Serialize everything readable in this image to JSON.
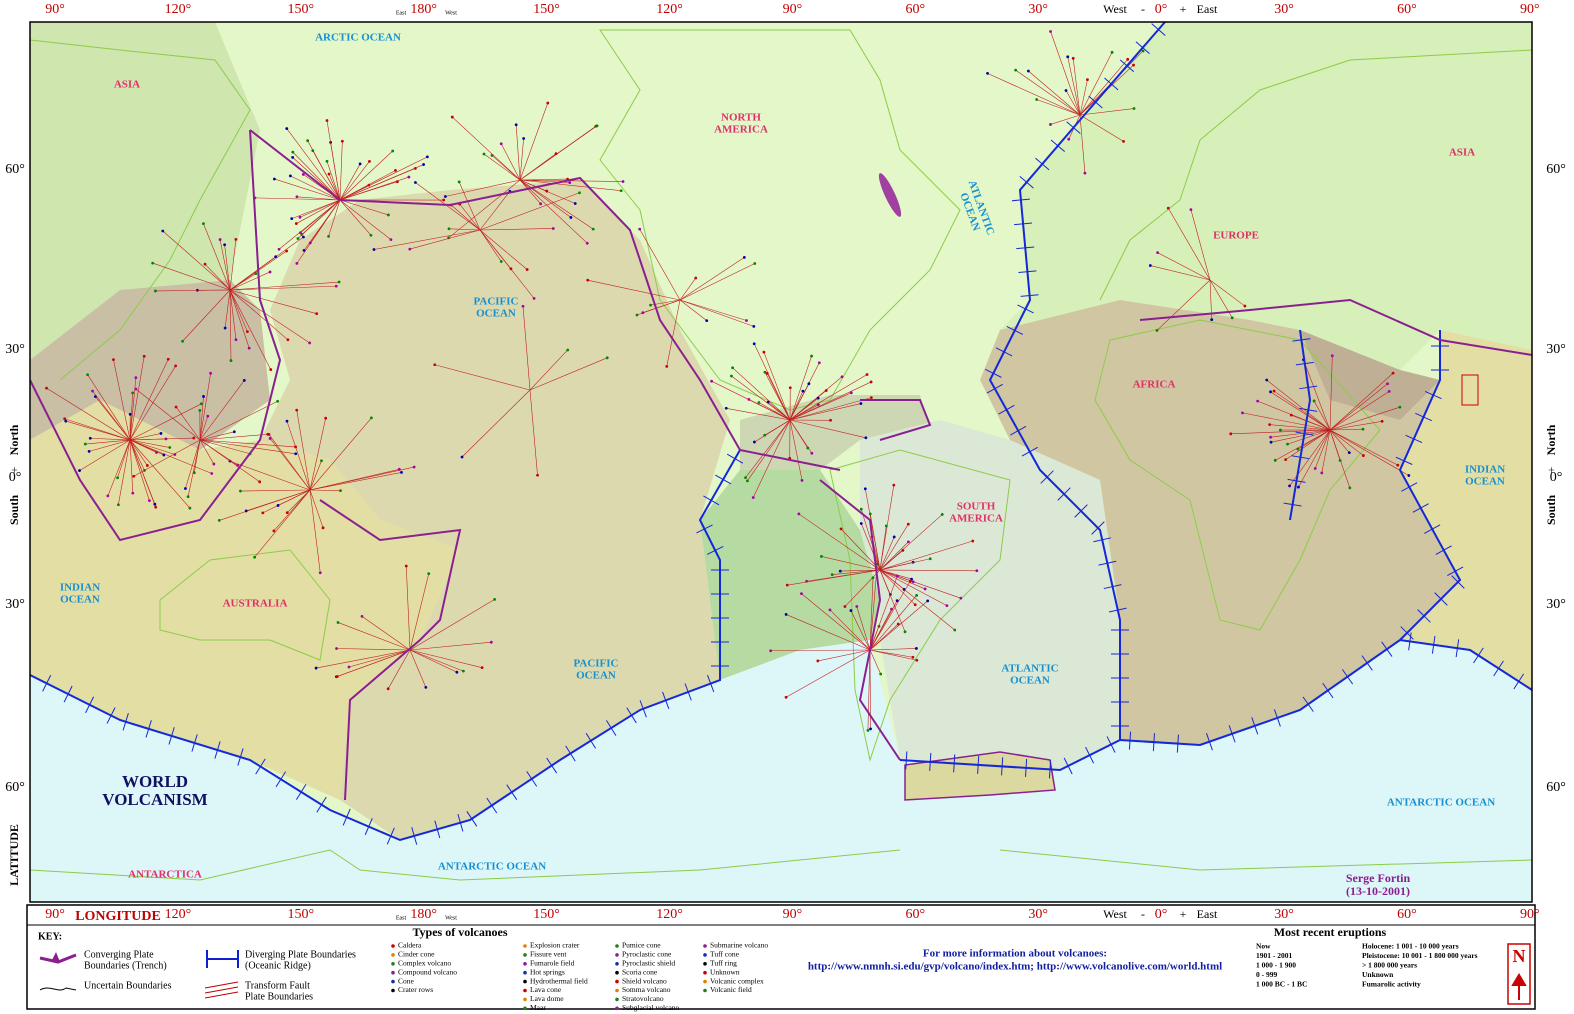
{
  "map": {
    "title_lines": [
      "WORLD",
      "VOLCANISM"
    ],
    "longitude_labels_top": [
      "90°",
      "120°",
      "150°",
      "180°",
      "150°",
      "120°",
      "90°",
      "60°",
      "30°",
      "0°",
      "30°",
      "60°",
      "90°"
    ],
    "longitude_labels_bottom": [
      "90°",
      "120°",
      "150°",
      "180°",
      "150°",
      "120°",
      "90°",
      "60°",
      "30°",
      "0°",
      "30°",
      "60°",
      "90°"
    ],
    "latitude_labels_left": [
      "60°",
      "30°",
      "0°",
      "30°",
      "60°"
    ],
    "latitude_labels_right": [
      "60°",
      "30°",
      "0°",
      "30°",
      "60°"
    ],
    "hemisphere": {
      "west": "West",
      "minus": "-",
      "plus": "+",
      "east": "East"
    },
    "date_line": {
      "east": "East",
      "west": "West"
    },
    "axis": {
      "south": "South",
      "north": "North",
      "latitude": "LATITUDE",
      "longitude": "LONGITUDE"
    },
    "regions": [
      {
        "lines": [
          "ARCTIC OCEAN"
        ],
        "kind": "ocean"
      },
      {
        "lines": [
          "ASIA"
        ],
        "kind": "land"
      },
      {
        "lines": [
          "NORTH",
          "AMERICA"
        ],
        "kind": "land"
      },
      {
        "lines": [
          "PACIFIC",
          "OCEAN"
        ],
        "kind": "ocean"
      },
      {
        "lines": [
          "ATLANTIC",
          "OCEAN"
        ],
        "kind": "ocean"
      },
      {
        "lines": [
          "EUROPE"
        ],
        "kind": "land"
      },
      {
        "lines": [
          "ASIA"
        ],
        "kind": "land"
      },
      {
        "lines": [
          "AFRICA"
        ],
        "kind": "land"
      },
      {
        "lines": [
          "INDIAN",
          "OCEAN"
        ],
        "kind": "ocean"
      },
      {
        "lines": [
          "AUSTRALIA"
        ],
        "kind": "land"
      },
      {
        "lines": [
          "PACIFIC",
          "OCEAN"
        ],
        "kind": "ocean"
      },
      {
        "lines": [
          "SOUTH",
          "AMERICA"
        ],
        "kind": "land"
      },
      {
        "lines": [
          "ATLANTIC",
          "OCEAN"
        ],
        "kind": "ocean"
      },
      {
        "lines": [
          "INDIAN",
          "OCEAN"
        ],
        "kind": "ocean"
      },
      {
        "lines": [
          "ANTARCTIC OCEAN"
        ],
        "kind": "ocean"
      },
      {
        "lines": [
          "ANTARCTIC OCEAN"
        ],
        "kind": "ocean"
      },
      {
        "lines": [
          "ANTARCTICA"
        ],
        "kind": "land"
      }
    ],
    "author": {
      "name": "Serge Fortin",
      "date": "(13-10-2001)"
    },
    "compass": "N"
  },
  "key": {
    "heading": "KEY:",
    "converging": [
      "Converging Plate",
      "Boundaries (Trench)"
    ],
    "uncertain": [
      "Uncertain Boundaries"
    ],
    "diverging": [
      "Diverging Plate Boundaries",
      "(Oceanic Ridge)"
    ],
    "transform": [
      "Transform Fault",
      "Plate Boundaries"
    ]
  },
  "volcano_types": {
    "heading": "Types of volcanoes",
    "columns": [
      [
        "Caldera",
        "Cinder cone",
        "Complex volcano",
        "Compound volcano",
        "Cone",
        "Crater rows"
      ],
      [
        "Explosion crater",
        "Fissure vent",
        "Fumarole field",
        "Hot springs",
        "Hydrothermal field",
        "Lava cone",
        "Lava dome",
        "Maar"
      ],
      [
        "Pumice cone",
        "Pyroclastic cone",
        "Pyroclastic shield",
        "Scoria cone",
        "Shield volcano",
        "Somma volcano",
        "Stratovolcano",
        "Subglacial volcano"
      ],
      [
        "Submarine volcano",
        "Tuff cone",
        "Tuff ring",
        "Unknown",
        "Volcanic complex",
        "Volcanic field"
      ]
    ]
  },
  "info": {
    "heading": "For more information about volcanoes:",
    "links": "http://www.nmnh.si.edu/gvp/volcano/index.htm; http://www.volcanolive.com/world.html"
  },
  "recent_eruptions": {
    "heading": "Most recent eruptions",
    "columns": [
      [
        {
          "label": "Now",
          "color": "#e00000"
        },
        {
          "label": "1901 - 2001",
          "color": "#e00000"
        },
        {
          "label": "1 000 - 1 900",
          "color": "#b00000"
        },
        {
          "label": "0 - 999",
          "color": "#900000"
        },
        {
          "label": "1 000 BC - 1 BC",
          "color": "#900000"
        }
      ],
      [
        {
          "label": "Holocene: 1 001 - 10 000 years",
          "color": "#a000a0"
        },
        {
          "label": "Pleistocene: 10 001 - 1 800 000 years",
          "color": "#1030b0"
        },
        {
          "label": "> 1 800 000 years",
          "color": "#008000"
        },
        {
          "label": "Unknown",
          "color": "#d08000"
        },
        {
          "label": "Fumarolic activity",
          "color": "#008888"
        }
      ]
    ]
  }
}
